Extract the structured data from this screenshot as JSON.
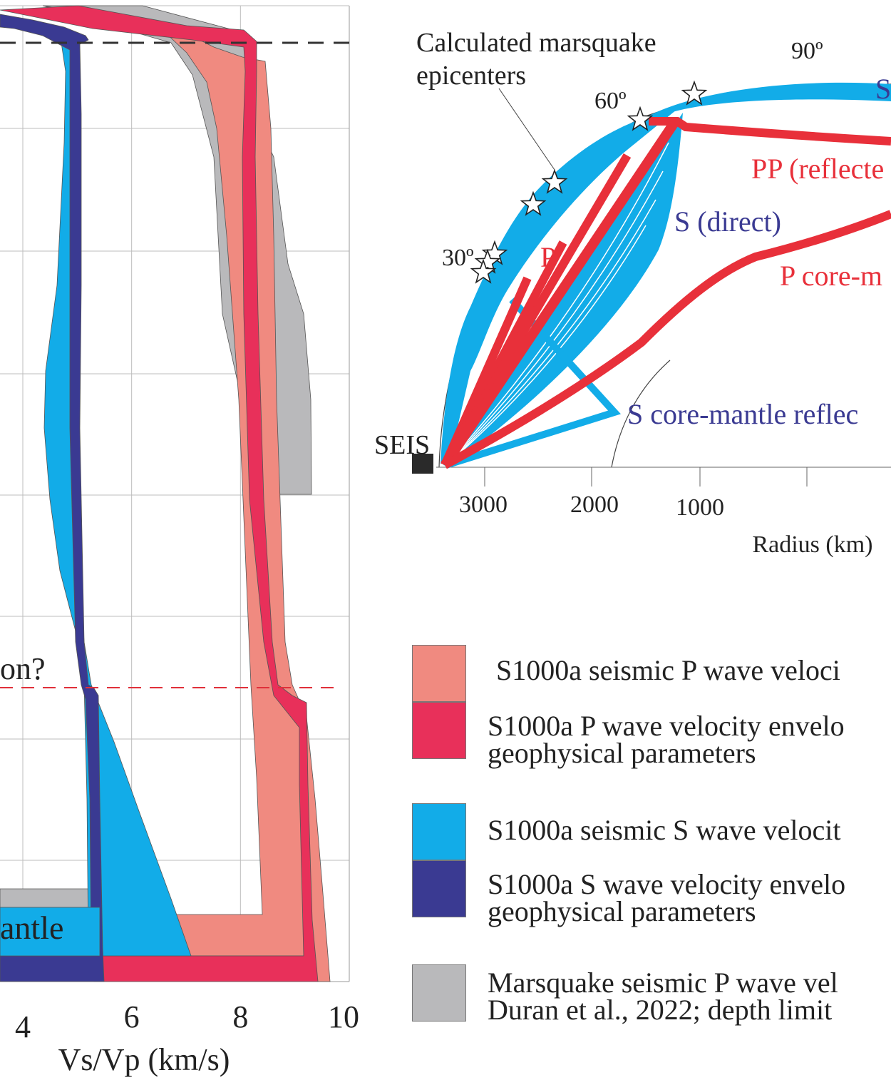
{
  "colors": {
    "p_range": "#f08a80",
    "p_envelope": "#e8305a",
    "s_range": "#12ace8",
    "s_envelope": "#3a3a92",
    "marsquake_p": "#b9b9bb",
    "grid": "#bdbdbd",
    "label_red": "#e8303a",
    "label_blue": "#3a3a92",
    "dashed_black": "#333333",
    "dashed_red": "#e0303a"
  },
  "chart_data": [
    {
      "type": "area",
      "xlabel": "Vs/Vp (km/s)",
      "x_ticks": [
        "4",
        "6",
        "8",
        "10"
      ],
      "xlim": [
        0,
        10
      ],
      "grid": true,
      "annotations": [
        "on?",
        "antle"
      ],
      "series": [
        {
          "key": "marsquake_p",
          "x_range_top": [
            7.2,
            8.4
          ],
          "x_range_bottom": [
            7.5,
            9.3
          ]
        },
        {
          "key": "p_range",
          "x_range_top": [
            7.6,
            8.4
          ],
          "x_range_bottom": [
            8.0,
            9.5
          ]
        },
        {
          "key": "p_envelope",
          "x_range_top": [
            8.2,
            8.5
          ],
          "x_range_bottom": [
            8.6,
            9.3
          ]
        },
        {
          "key": "s_range",
          "x_range_top": [
            4.9,
            5.1
          ],
          "x_range_bottom": [
            5.0,
            7.0
          ]
        },
        {
          "key": "s_envelope",
          "x_range_top": [
            4.8,
            5.2
          ],
          "x_range_bottom": [
            5.1,
            5.4
          ]
        }
      ]
    },
    {
      "type": "diagram",
      "title": "Calculated marsquake epicenters",
      "xlabel": "Radius (km)",
      "x_ticks": [
        "3000",
        "2000",
        "1000"
      ],
      "angle_labels": [
        "30º",
        "60º",
        "90º"
      ],
      "station_label": "SEIS",
      "ray_labels": {
        "s_top": "S",
        "pp": "PP (reflecte",
        "s_direct": "S (direct)",
        "p_direct": "P",
        "p_cmr": "P core-m",
        "s_cmr": "S core-mantle reflec"
      },
      "epicenter_count": 7
    }
  ],
  "legend": {
    "items": [
      {
        "key": "p_range",
        "lines": [
          "S1000a seismic P wave veloci"
        ]
      },
      {
        "key": "p_envelope",
        "lines": [
          "S1000a P wave velocity envelo",
          "geophysical parameters"
        ]
      },
      {
        "key": "s_range",
        "lines": [
          "S1000a seismic S wave velocit"
        ]
      },
      {
        "key": "s_envelope",
        "lines": [
          "S1000a S wave velocity envelo",
          "geophysical parameters"
        ]
      },
      {
        "key": "marsquake_p",
        "lines": [
          "Marsquake seismic P wave vel",
          "Duran et al., 2022; depth limit"
        ]
      }
    ]
  }
}
